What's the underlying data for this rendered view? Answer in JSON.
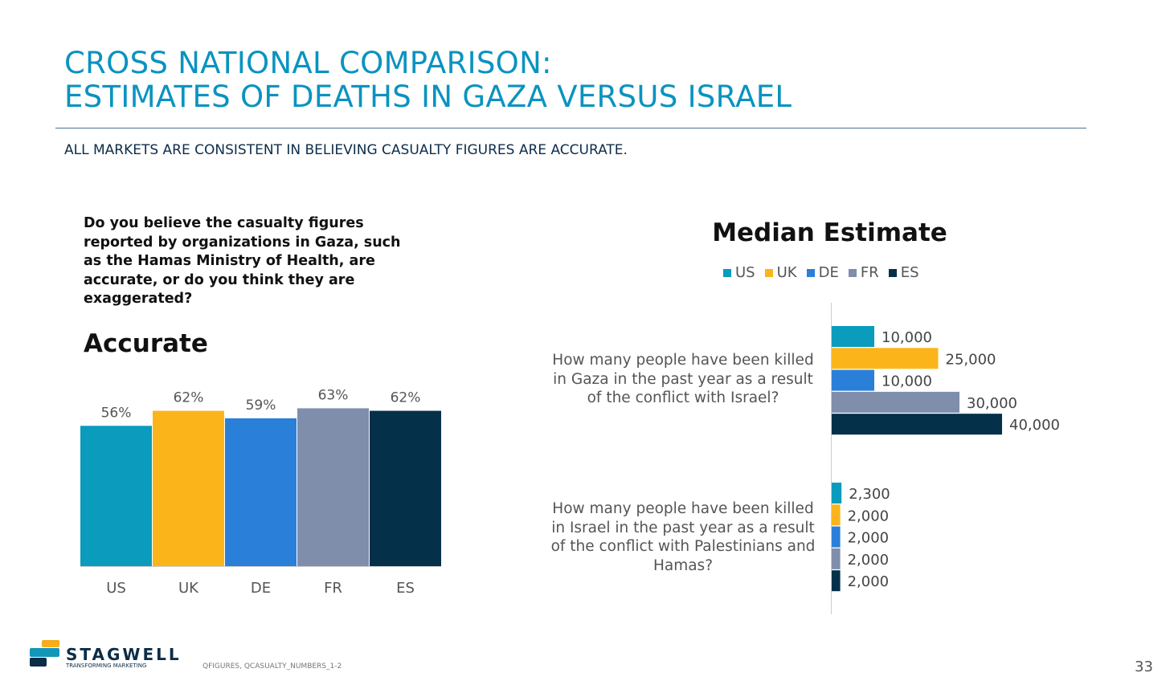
{
  "header": {
    "title_line1": "CROSS NATIONAL COMPARISON:",
    "title_line2": "ESTIMATES OF DEATHS IN GAZA VERSUS ISRAEL",
    "subtitle": "ALL MARKETS ARE CONSISTENT IN BELIEVING CASUALTY FIGURES ARE ACCURATE."
  },
  "question": "Do you believe the casualty figures reported by organizations in Gaza, such as the Hamas Ministry of Health, are accurate, or do you think they are exaggerated?",
  "footer": {
    "source": "QFIGURES,  QCASUALTY_NUMBERS_1-2",
    "page": "33",
    "logo_text": "STAGWELL",
    "logo_tagline": "TRANSFORMING MARKETING"
  },
  "colors": {
    "US": "#0a9bbd",
    "UK": "#fbb51b",
    "DE": "#2a7fd8",
    "FR": "#7f8eaa",
    "ES": "#05304a"
  },
  "chart_data": [
    {
      "type": "bar",
      "title": "Accurate",
      "categories": [
        "US",
        "UK",
        "DE",
        "FR",
        "ES"
      ],
      "values": [
        56,
        62,
        59,
        63,
        62
      ],
      "labels": [
        "56%",
        "62%",
        "59%",
        "63%",
        "62%"
      ],
      "ylim": [
        0,
        100
      ],
      "xlabel": "",
      "ylabel": ""
    },
    {
      "type": "bar",
      "orientation": "horizontal",
      "title": "Median Estimate",
      "legend": [
        "US",
        "UK",
        "DE",
        "FR",
        "ES"
      ],
      "legend_position": "top",
      "categories": [
        "How many people have been killed in Gaza in the past year as a result of the conflict with Israel?",
        "How many people have been killed in Israel in the past year as a result of the conflict with Palestinians and Hamas?"
      ],
      "series": [
        {
          "name": "US",
          "values": [
            10000,
            2300
          ]
        },
        {
          "name": "UK",
          "values": [
            25000,
            2000
          ]
        },
        {
          "name": "DE",
          "values": [
            10000,
            2000
          ]
        },
        {
          "name": "FR",
          "values": [
            30000,
            2000
          ]
        },
        {
          "name": "ES",
          "values": [
            40000,
            2000
          ]
        }
      ],
      "xlim": [
        0,
        40000
      ]
    }
  ]
}
